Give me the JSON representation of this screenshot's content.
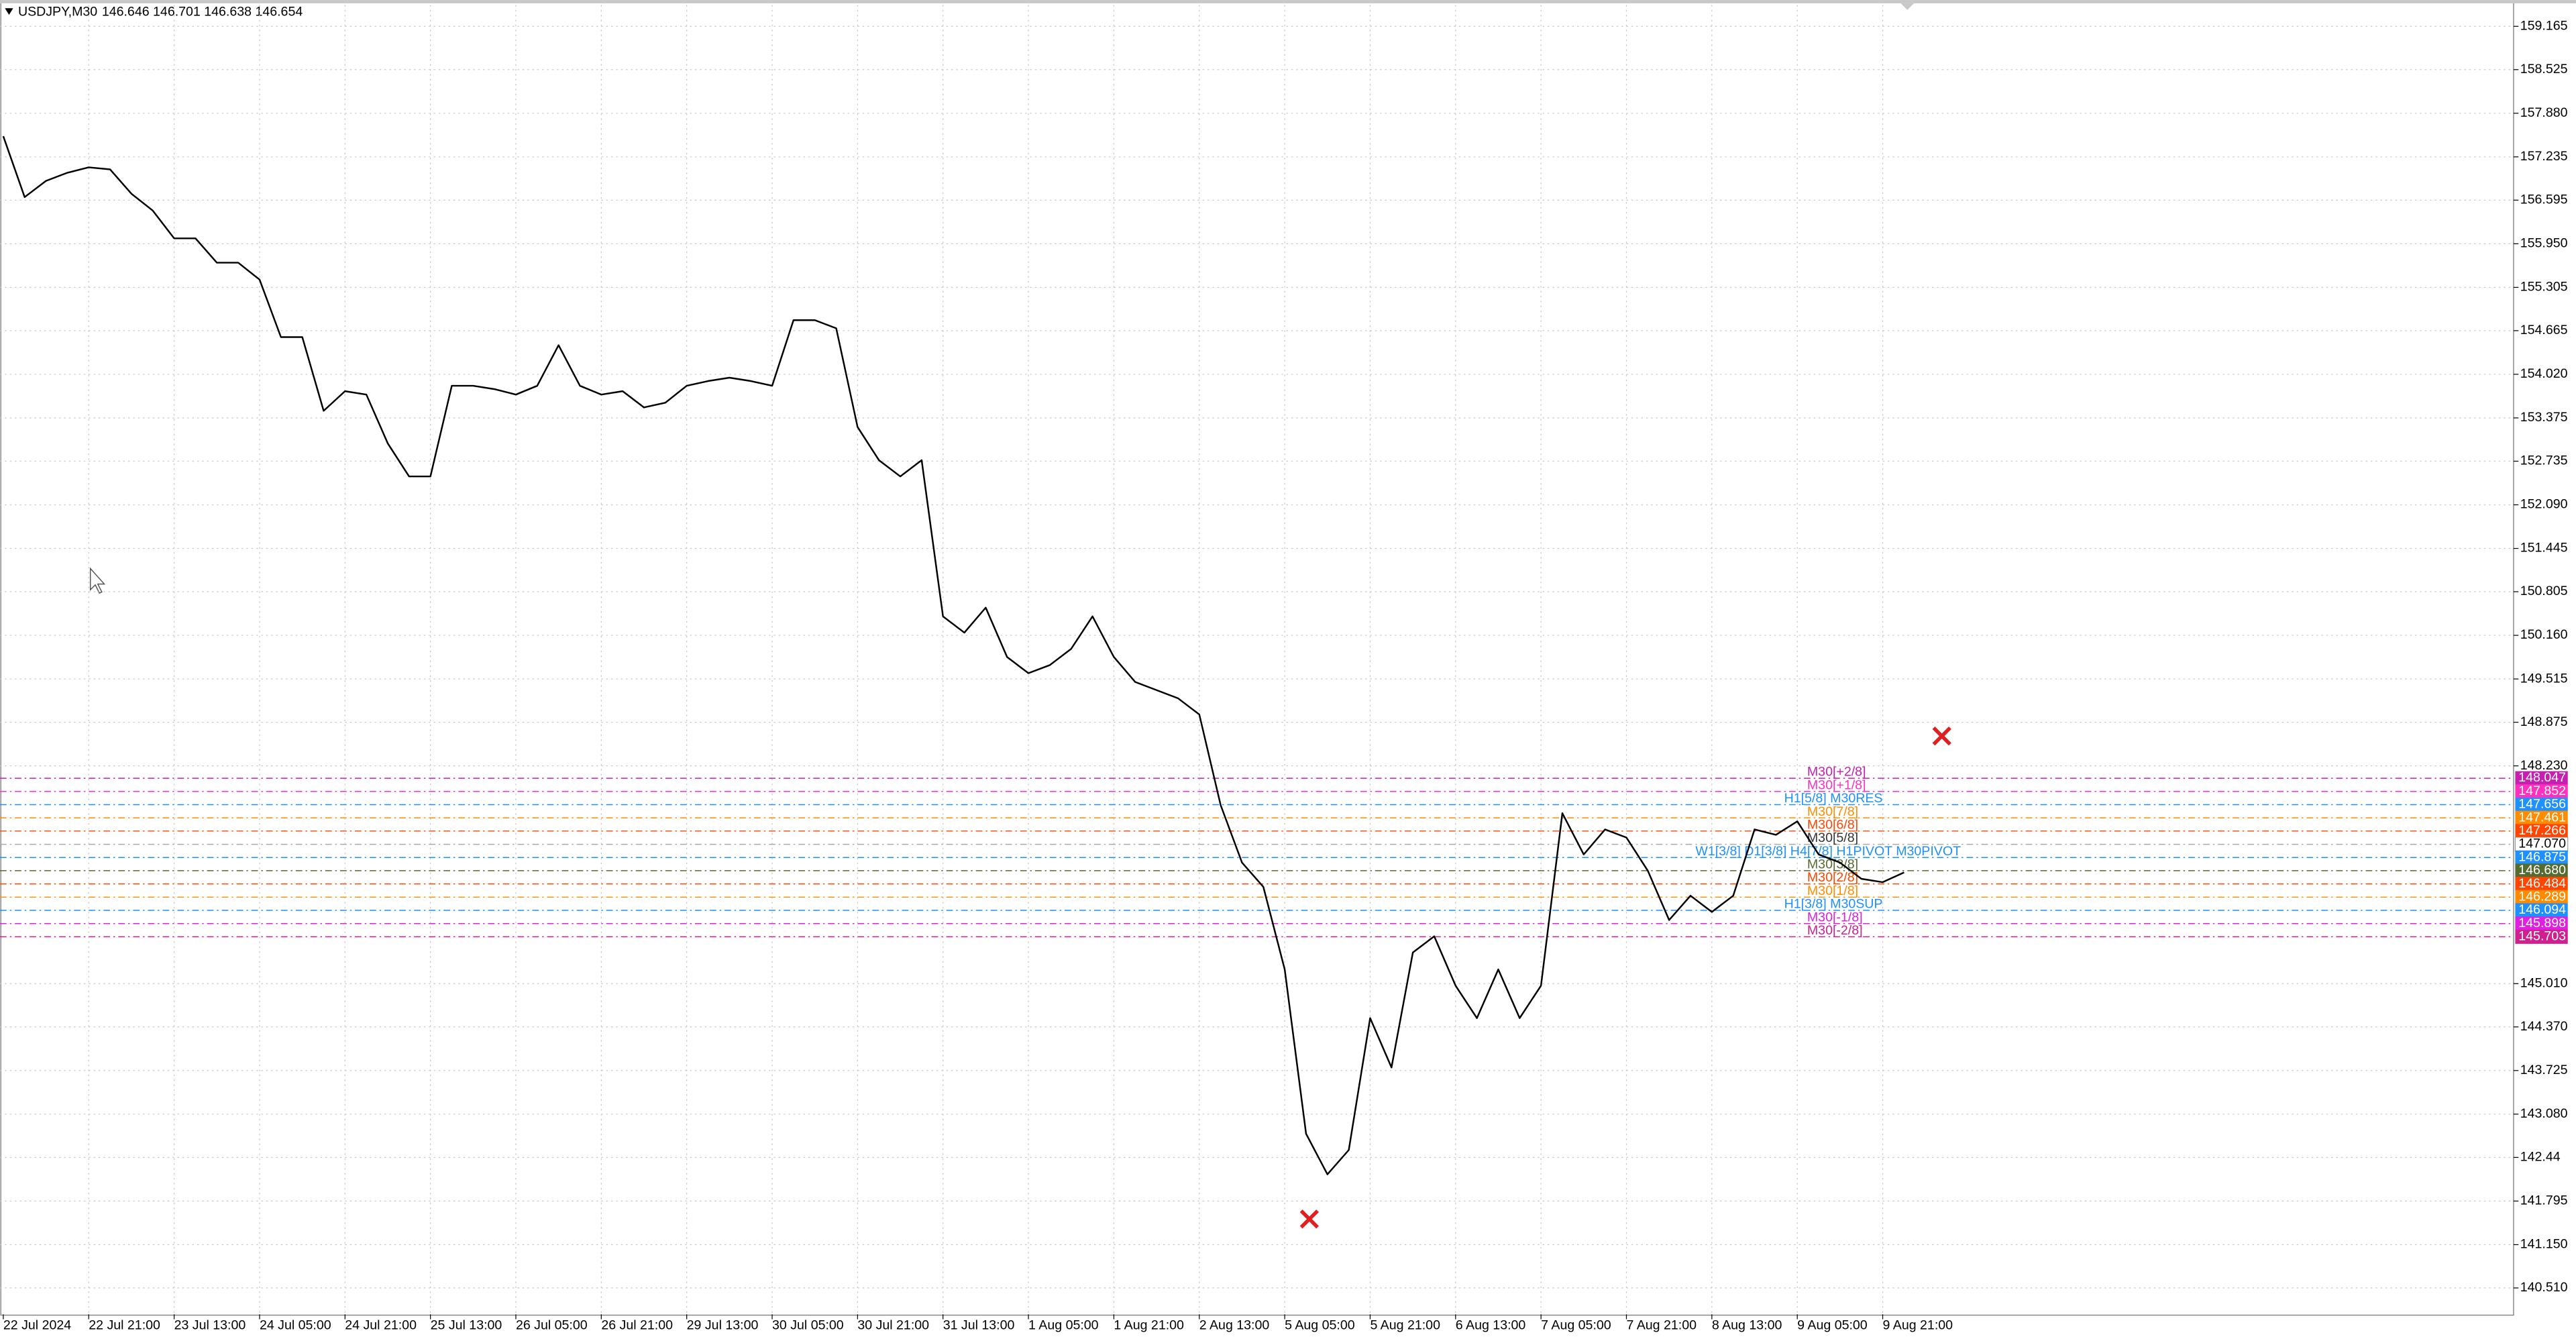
{
  "chart_data": {
    "type": "line",
    "title": "USDJPY,M30",
    "subtitle": "146.646 146.701 146.638 146.654",
    "color": "#000000",
    "categories": [
      "22 Jul 2024",
      null,
      null,
      null,
      "22 Jul 21:00",
      null,
      null,
      null,
      "23 Jul 13:00",
      null,
      null,
      null,
      "24 Jul 05:00",
      null,
      null,
      null,
      "24 Jul 21:00",
      null,
      null,
      null,
      "25 Jul 13:00",
      null,
      null,
      null,
      "26 Jul 05:00",
      null,
      null,
      null,
      "26 Jul 21:00",
      null,
      null,
      null,
      "29 Jul 13:00",
      null,
      null,
      null,
      "30 Jul 05:00",
      null,
      null,
      null,
      "30 Jul 21:00",
      null,
      null,
      null,
      "31 Jul 13:00",
      null,
      null,
      null,
      "1 Aug 05:00",
      null,
      null,
      null,
      "1 Aug 21:00",
      null,
      null,
      null,
      "2 Aug 13:00",
      null,
      null,
      null,
      "5 Aug 05:00",
      null,
      null,
      null,
      "5 Aug 21:00",
      null,
      null,
      null,
      "6 Aug 13:00",
      null,
      null,
      null,
      "7 Aug 05:00",
      null,
      null,
      null,
      "7 Aug 21:00",
      null,
      null,
      null,
      "8 Aug 13:00",
      null,
      null,
      null,
      "9 Aug 05:00",
      null,
      null,
      null,
      "9 Aug 21:00",
      null
    ],
    "values": [
      157.54,
      156.64,
      156.88,
      157.0,
      157.08,
      157.05,
      156.69,
      156.44,
      156.03,
      156.03,
      155.67,
      155.67,
      155.42,
      154.57,
      154.57,
      153.48,
      153.77,
      153.72,
      153.0,
      152.51,
      152.51,
      153.85,
      153.85,
      153.8,
      153.72,
      153.85,
      154.45,
      153.85,
      153.72,
      153.77,
      153.53,
      153.6,
      153.85,
      153.92,
      153.97,
      153.92,
      153.85,
      154.82,
      154.82,
      154.7,
      153.24,
      152.75,
      152.51,
      152.75,
      150.44,
      150.2,
      150.57,
      149.84,
      149.6,
      149.72,
      149.96,
      150.44,
      149.84,
      149.47,
      149.35,
      149.23,
      148.99,
      147.65,
      146.8,
      146.44,
      145.22,
      142.79,
      142.19,
      142.55,
      144.5,
      143.77,
      145.47,
      145.71,
      144.98,
      144.5,
      145.22,
      144.5,
      144.98,
      147.53,
      146.92,
      147.29,
      147.17,
      146.68,
      145.95,
      146.31,
      146.07,
      146.31,
      147.29,
      147.21,
      147.41,
      146.92,
      146.8,
      146.56,
      146.51,
      146.654
    ],
    "ylim": [
      140.12,
      159.554
    ],
    "yticks": [
      159.165,
      158.525,
      {
        "value": 157.88,
        "label": "157.880"
      },
      157.235,
      156.595,
      {
        "value": 155.95,
        "label": "155.950"
      },
      155.305,
      154.665,
      {
        "value": 154.02,
        "label": "154.020"
      },
      153.375,
      152.735,
      {
        "value": 152.09,
        "label": "152.090"
      },
      151.445,
      150.805,
      {
        "value": 150.16,
        "label": "150.160"
      },
      149.515,
      148.875,
      {
        "value": 148.23,
        "label": "148.230"
      },
      {
        "value": 145.01,
        "label": "145.010"
      },
      {
        "value": 144.37,
        "label": "144.370"
      },
      143.725,
      {
        "value": 143.08,
        "label": "143.080"
      },
      142.44,
      141.795,
      {
        "value": 141.15,
        "label": "141.150"
      },
      {
        "value": 140.51,
        "label": "140.510"
      }
    ],
    "grid": true,
    "levels": [
      {
        "value": 148.047,
        "label": "M30[+2/8]",
        "color": "#c71fb0"
      },
      {
        "value": 147.852,
        "label": "M30[+1/8]",
        "color": "#ff2fc0"
      },
      {
        "value": 147.656,
        "label": "H1[5/8] M30RES",
        "color": "#1e90ff"
      },
      {
        "value": 147.461,
        "label": "M30[7/8]",
        "color": "#ff8c00"
      },
      {
        "value": 147.266,
        "label": "M30[6/8]",
        "color": "#ff4500"
      },
      {
        "value": 147.07,
        "value_label": "147.070",
        "label": "M30[5/8]",
        "color": "#ffffff"
      },
      {
        "value": 146.875,
        "label": "W1[3/8] D1[3/8] H4[7/8] H1PIVOT M30PIVOT",
        "color": "#1e90ff"
      },
      {
        "value": 146.68,
        "value_label": "146.680",
        "label": "M30[3/8]",
        "color": "#556b2f"
      },
      {
        "value": 146.484,
        "label": "M30[2/8]",
        "color": "#ff4500"
      },
      {
        "value": 146.289,
        "label": "M30[1/8]",
        "color": "#ff8c00"
      },
      {
        "value": 146.094,
        "label": "H1[3/8] M30SUP",
        "color": "#1e90ff"
      },
      {
        "value": 145.898,
        "label": "M30[-1/8]",
        "color": "#e020e0"
      },
      {
        "value": 145.703,
        "label": "M30[-2/8]",
        "color": "#d02090"
      }
    ]
  }
}
